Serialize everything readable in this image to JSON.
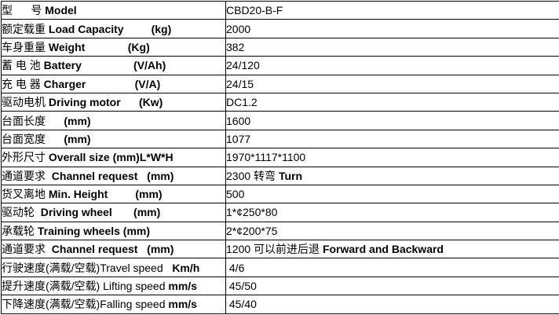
{
  "table": {
    "name": "specification-table",
    "rows": [
      {
        "label": [
          [
            "型      号 ",
            0
          ],
          [
            "Model",
            1
          ]
        ],
        "value": [
          [
            "CBD20-B-F",
            0
          ]
        ]
      },
      {
        "label": [
          [
            "额定载重 ",
            0
          ],
          [
            "Load Capacity",
            1
          ],
          [
            "         (kg)",
            1
          ]
        ],
        "value": [
          [
            "2000",
            0
          ]
        ]
      },
      {
        "label": [
          [
            "车身重量 ",
            0
          ],
          [
            "Weight",
            1
          ],
          [
            "              (Kg)",
            1
          ]
        ],
        "value": [
          [
            "382",
            0
          ]
        ]
      },
      {
        "label": [
          [
            "蓄 电 池 ",
            0
          ],
          [
            "Battery",
            1
          ],
          [
            "                 (V/Ah)",
            1
          ]
        ],
        "value": [
          [
            "24/120",
            0
          ]
        ]
      },
      {
        "label": [
          [
            "充 电 器 ",
            0
          ],
          [
            "Charger",
            1
          ],
          [
            "                (V/A)",
            1
          ]
        ],
        "value": [
          [
            "24/15",
            0
          ]
        ]
      },
      {
        "label": [
          [
            "驱动电机 ",
            0
          ],
          [
            "Driving motor",
            1
          ],
          [
            "      (Kw)",
            1
          ]
        ],
        "value": [
          [
            "DC1.2",
            0
          ]
        ]
      },
      {
        "label": [
          [
            "台面长度",
            0
          ],
          [
            "      (mm)",
            1
          ]
        ],
        "value": [
          [
            "1600",
            0
          ]
        ]
      },
      {
        "label": [
          [
            "台面宽度",
            0
          ],
          [
            "      (mm)",
            1
          ]
        ],
        "value": [
          [
            "1077",
            0
          ]
        ]
      },
      {
        "label": [
          [
            "外形尺寸 ",
            0
          ],
          [
            "Overall size (mm)L*W*H",
            1
          ]
        ],
        "value": [
          [
            "1970*1117*1100",
            0
          ]
        ]
      },
      {
        "label": [
          [
            "通道要求  ",
            0
          ],
          [
            "Channel request",
            1
          ],
          [
            "   (mm)",
            1
          ]
        ],
        "value": [
          [
            "2300 转弯 ",
            0
          ],
          [
            "Turn",
            1
          ]
        ]
      },
      {
        "label": [
          [
            "货叉离地 ",
            0
          ],
          [
            "Min. Height",
            1
          ],
          [
            "         (mm)",
            1
          ]
        ],
        "value": [
          [
            "500",
            0
          ]
        ]
      },
      {
        "label": [
          [
            "驱动轮  ",
            0
          ],
          [
            "Driving wheel",
            1
          ],
          [
            "       (mm)",
            1
          ]
        ],
        "value": [
          [
            "1*¢250*80",
            0
          ]
        ]
      },
      {
        "label": [
          [
            "承载轮 ",
            0
          ],
          [
            "Training wheels (mm)",
            1
          ]
        ],
        "value": [
          [
            "2*¢200*75",
            0
          ]
        ]
      },
      {
        "label": [
          [
            "通道要求  ",
            0
          ],
          [
            "Channel request",
            1
          ],
          [
            "   (mm)",
            1
          ]
        ],
        "value": [
          [
            "1200 可以前进后退 ",
            0
          ],
          [
            "Forward and Backward",
            1
          ]
        ]
      },
      {
        "label": [
          [
            "行驶速度(满载/空载)",
            0
          ],
          [
            "Travel speed",
            0
          ],
          [
            "   ",
            0
          ],
          [
            "Km/h",
            1
          ]
        ],
        "value": [
          [
            " 4/6",
            0
          ]
        ]
      },
      {
        "label": [
          [
            "提升速度(满载/空载) ",
            0
          ],
          [
            "Lifting speed ",
            0
          ],
          [
            "mm/s",
            1
          ]
        ],
        "value": [
          [
            " 45/50",
            0
          ]
        ]
      },
      {
        "label": [
          [
            "下降速度(满载/空载)",
            0
          ],
          [
            "Falling speed ",
            0
          ],
          [
            "mm/s",
            1
          ]
        ],
        "value": [
          [
            " 45/40",
            0
          ]
        ]
      }
    ]
  }
}
